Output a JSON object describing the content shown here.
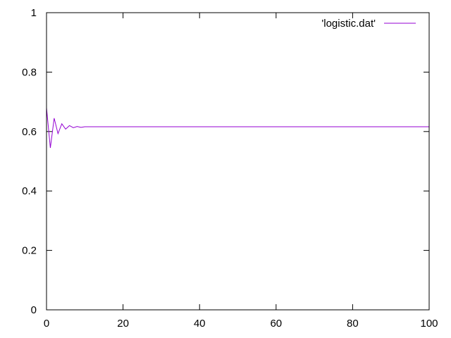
{
  "chart_data": {
    "type": "line",
    "title": "",
    "xlabel": "",
    "ylabel": "",
    "xlim": [
      0,
      100
    ],
    "ylim": [
      0,
      1
    ],
    "x_ticks": [
      0,
      20,
      40,
      60,
      80,
      100
    ],
    "y_ticks": [
      0,
      0.2,
      0.4,
      0.6,
      0.8,
      1
    ],
    "x_tick_labels": [
      "0",
      "20",
      "40",
      "60",
      "80",
      "100"
    ],
    "y_tick_labels": [
      "0",
      "0.2",
      "0.4",
      "0.6",
      "0.8",
      "1"
    ],
    "grid": false,
    "legend_position": "top-right",
    "series": [
      {
        "name": "'logistic.dat'",
        "color": "#9400d3",
        "x": [
          0,
          1,
          2,
          3,
          4,
          5,
          6,
          7,
          8,
          9,
          10,
          100
        ],
        "y": [
          0.68,
          0.545,
          0.645,
          0.593,
          0.626,
          0.608,
          0.62,
          0.613,
          0.617,
          0.614,
          0.616,
          0.616
        ]
      }
    ]
  }
}
